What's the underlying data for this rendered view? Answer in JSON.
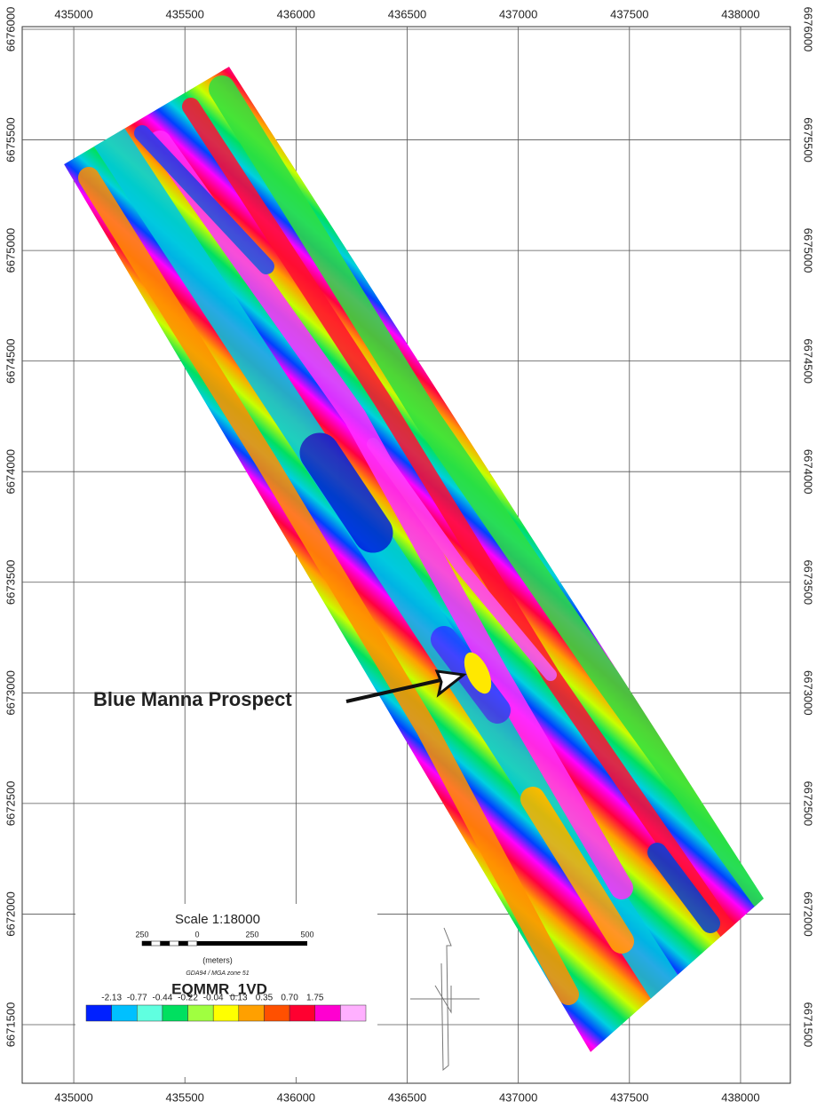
{
  "map": {
    "xlim": [
      434768,
      438224
    ],
    "ylim": [
      6671235,
      6676012
    ],
    "xticks": [
      435000,
      435500,
      436000,
      436500,
      437000,
      437500,
      438000
    ],
    "yticks": [
      6671500,
      6672000,
      6672500,
      6673000,
      6673500,
      6674000,
      6674500,
      6675000,
      6675500,
      6676000
    ],
    "annotation": "Blue Manna Prospect",
    "scale": {
      "title": "Scale 1:18000",
      "labels": [
        "250",
        "0",
        "250",
        "500"
      ],
      "unit": "(meters)",
      "projection": "GDA94 / MGA zone 51"
    },
    "legend": {
      "title": "EQMMR_1VD",
      "labels": [
        "-2.13",
        "-0.77",
        "-0.44",
        "-0.22",
        "-0.04",
        "0.13",
        "0.35",
        "0.70",
        "1.75"
      ]
    }
  }
}
